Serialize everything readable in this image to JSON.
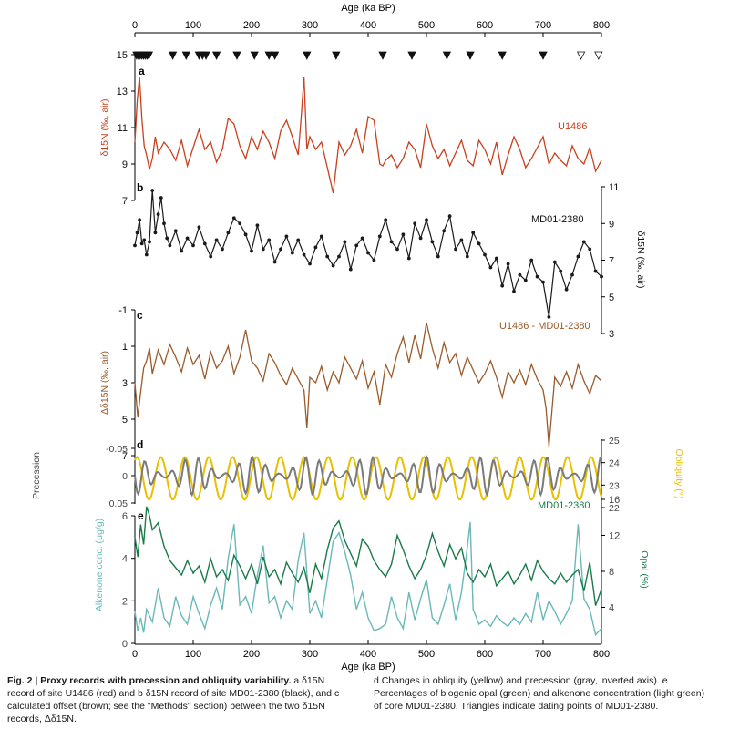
{
  "figure": {
    "top_axis_label": "Age (ka BP)",
    "bottom_axis_label": "Age (ka BP)",
    "age_ticks": [
      "0",
      "100",
      "200",
      "300",
      "400",
      "500",
      "600",
      "700",
      "800"
    ]
  },
  "caption_left": {
    "head": "Fig. 2 | Proxy records with precession and obliquity variability.",
    "body": "a δ15N record of site U1486 (red) and b δ15N record of site MD01-2380 (black), and c calculated offset (brown; see the \"Methods\" section) between the two δ15N records, Δδ15N."
  },
  "caption_right": "d Changes in obliquity (yellow) and precession (gray, inverted axis). e Percentages of biogenic opal (green) and alkenone concentration (light green) of core MD01-2380. Triangles indicate dating points of MD01-2380.",
  "colors": {
    "u1486": "#c8401e",
    "md01": "#1a1a1a",
    "offset": "#9a5a2a",
    "precession": "#7a7a7a",
    "obliquity": "#e8c000",
    "opal": "#1a7a4a",
    "alkenone": "#6ab8b8",
    "triangle_filled": "#111111",
    "triangle_open": "#ffffff"
  },
  "chart_data": [
    {
      "id": "a",
      "type": "line",
      "panel_label": "a",
      "series_name": "U1486",
      "ylabel": "δ15N (‰, air)",
      "ylim": [
        7,
        15
      ],
      "yticks": [
        "7",
        "9",
        "11",
        "13",
        "15"
      ],
      "x": [
        0,
        4,
        8,
        12,
        16,
        20,
        25,
        30,
        35,
        40,
        50,
        60,
        70,
        80,
        90,
        100,
        110,
        120,
        130,
        140,
        150,
        160,
        170,
        180,
        190,
        200,
        210,
        220,
        230,
        240,
        250,
        260,
        270,
        280,
        285,
        290,
        295,
        300,
        310,
        320,
        330,
        340,
        350,
        360,
        370,
        380,
        390,
        400,
        410,
        420,
        425,
        430,
        440,
        450,
        460,
        470,
        480,
        490,
        500,
        510,
        520,
        530,
        540,
        550,
        560,
        570,
        580,
        590,
        600,
        610,
        620,
        630,
        640,
        650,
        660,
        670,
        680,
        690,
        700,
        710,
        720,
        730,
        740,
        750,
        760,
        770,
        780,
        790,
        800
      ],
      "values": [
        10.2,
        12.5,
        13.8,
        11.5,
        10.0,
        9.5,
        8.7,
        9.3,
        10.5,
        9.6,
        10.2,
        9.8,
        9.2,
        10.3,
        8.9,
        9.9,
        10.9,
        9.8,
        10.2,
        9.1,
        9.8,
        11.5,
        11.2,
        10.0,
        9.3,
        10.5,
        9.8,
        10.8,
        10.2,
        9.3,
        10.8,
        11.4,
        10.5,
        9.5,
        11.5,
        13.8,
        9.8,
        10.5,
        9.8,
        10.2,
        8.8,
        7.4,
        10.2,
        9.5,
        10.0,
        10.9,
        9.6,
        11.6,
        11.4,
        9.0,
        8.9,
        9.2,
        9.5,
        8.8,
        9.3,
        10.2,
        9.8,
        8.8,
        11.2,
        10.0,
        9.3,
        9.8,
        8.9,
        9.6,
        10.3,
        9.2,
        8.9,
        10.3,
        9.8,
        9.0,
        10.2,
        8.4,
        9.5,
        10.5,
        9.8,
        8.8,
        9.3,
        9.9,
        10.5,
        9.0,
        9.6,
        9.2,
        8.9,
        10.0,
        9.3,
        9.0,
        9.9,
        8.6,
        9.2
      ]
    },
    {
      "id": "b",
      "type": "line",
      "panel_label": "b",
      "series_name": "MD01-2380",
      "ylabel": "δ15N (‰, air)",
      "ylim": [
        3,
        11
      ],
      "yticks": [
        "3",
        "5",
        "7",
        "9",
        "11"
      ],
      "x": [
        0,
        4,
        8,
        12,
        16,
        20,
        25,
        30,
        35,
        40,
        45,
        50,
        55,
        60,
        70,
        80,
        90,
        100,
        110,
        120,
        130,
        140,
        150,
        160,
        170,
        180,
        190,
        200,
        210,
        220,
        230,
        240,
        250,
        260,
        270,
        280,
        290,
        300,
        310,
        320,
        330,
        340,
        350,
        360,
        370,
        380,
        390,
        400,
        410,
        420,
        430,
        440,
        450,
        460,
        470,
        480,
        490,
        500,
        510,
        520,
        530,
        540,
        550,
        560,
        570,
        580,
        590,
        600,
        610,
        620,
        630,
        640,
        650,
        660,
        670,
        680,
        690,
        700,
        710,
        720,
        730,
        740,
        750,
        760,
        770,
        780,
        790,
        800
      ],
      "values": [
        7.8,
        8.5,
        9.2,
        7.9,
        8.1,
        7.3,
        8.0,
        10.8,
        8.5,
        9.5,
        10.4,
        9.0,
        8.2,
        7.8,
        8.6,
        7.5,
        8.2,
        7.8,
        8.8,
        7.9,
        7.2,
        8.1,
        7.6,
        8.5,
        9.3,
        9.0,
        8.4,
        7.5,
        8.9,
        7.6,
        8.1,
        6.9,
        7.6,
        8.3,
        7.4,
        8.1,
        7.3,
        6.8,
        7.7,
        8.3,
        7.2,
        6.7,
        7.2,
        8.0,
        6.5,
        7.8,
        8.2,
        7.4,
        7.0,
        8.3,
        9.2,
        8.0,
        7.6,
        8.4,
        7.1,
        9.0,
        8.2,
        9.2,
        8.0,
        7.2,
        8.6,
        9.4,
        7.6,
        8.1,
        7.2,
        8.5,
        7.9,
        7.3,
        6.6,
        7.1,
        5.6,
        6.8,
        5.3,
        6.2,
        5.9,
        7.0,
        6.1,
        5.8,
        3.9,
        6.9,
        6.4,
        5.4,
        6.2,
        7.2,
        8.0,
        7.6,
        6.4,
        6.1
      ]
    },
    {
      "id": "c",
      "type": "line",
      "panel_label": "c",
      "series_name": "U1486 - MD01-2380",
      "ylabel": "Δδ15N (‰, air)",
      "ylim": [
        7,
        -1
      ],
      "yticks": [
        "-1",
        "1",
        "3",
        "5",
        "7"
      ],
      "x": [
        0,
        5,
        10,
        15,
        20,
        25,
        30,
        40,
        50,
        60,
        70,
        80,
        90,
        100,
        110,
        120,
        130,
        140,
        150,
        160,
        170,
        180,
        190,
        200,
        210,
        220,
        230,
        240,
        250,
        260,
        270,
        280,
        290,
        295,
        300,
        310,
        320,
        330,
        340,
        350,
        360,
        370,
        380,
        390,
        400,
        410,
        420,
        430,
        440,
        450,
        460,
        470,
        480,
        490,
        500,
        510,
        520,
        530,
        540,
        550,
        560,
        570,
        580,
        590,
        600,
        610,
        620,
        630,
        640,
        650,
        660,
        670,
        680,
        690,
        700,
        705,
        710,
        720,
        730,
        740,
        750,
        760,
        770,
        780,
        790,
        800
      ],
      "values": [
        3.0,
        4.9,
        3.5,
        2.2,
        1.8,
        1.1,
        2.5,
        1.2,
        2.0,
        0.9,
        1.6,
        2.4,
        1.1,
        2.0,
        1.5,
        2.8,
        1.3,
        2.2,
        1.8,
        1.0,
        2.5,
        1.6,
        0.1,
        1.8,
        2.2,
        2.9,
        1.4,
        1.9,
        2.6,
        3.1,
        2.2,
        2.8,
        3.4,
        5.5,
        2.7,
        3.0,
        2.1,
        3.4,
        2.4,
        3.0,
        1.6,
        2.2,
        2.8,
        1.8,
        3.3,
        2.4,
        4.2,
        2.0,
        2.7,
        1.4,
        0.5,
        1.9,
        0.4,
        1.7,
        -0.3,
        1.1,
        2.2,
        0.8,
        1.9,
        1.4,
        2.6,
        1.6,
        2.3,
        3.0,
        2.5,
        1.8,
        2.7,
        3.8,
        2.4,
        3.0,
        2.3,
        3.1,
        2.0,
        2.8,
        3.4,
        4.4,
        6.5,
        2.7,
        3.2,
        2.4,
        3.3,
        2.0,
        2.9,
        3.6,
        2.6,
        2.9
      ]
    },
    {
      "id": "d",
      "type": "line",
      "panel_label": "d",
      "series": [
        {
          "name": "Precession",
          "axis": "left",
          "ylabel": "Precession",
          "ylim": [
            0.05,
            -0.05
          ],
          "yticks": [
            "-0.05",
            "0",
            "0.05"
          ],
          "period_ka": 23,
          "amplitude": 0.035
        },
        {
          "name": "Obliquity",
          "axis": "right",
          "ylabel": "Obliquity (°)",
          "ylim": [
            22,
            25
          ],
          "yticks": [
            "22",
            "23",
            "24",
            "25"
          ],
          "period_ka": 41,
          "mean": 23.3,
          "amplitude": 1.0
        }
      ],
      "label": "MD01-2380"
    },
    {
      "id": "e",
      "type": "line",
      "panel_label": "e",
      "series": [
        {
          "name": "Alkenone conc.",
          "axis": "left",
          "ylabel": "Alkenone conc. (μg/g)",
          "ylim": [
            0,
            6
          ],
          "yticks": [
            "0",
            "2",
            "4",
            "6"
          ],
          "x": [
            0,
            5,
            10,
            15,
            20,
            30,
            40,
            50,
            60,
            70,
            80,
            90,
            100,
            110,
            120,
            130,
            140,
            150,
            160,
            170,
            180,
            190,
            200,
            210,
            220,
            230,
            240,
            250,
            260,
            270,
            280,
            290,
            300,
            310,
            320,
            330,
            340,
            350,
            360,
            370,
            380,
            390,
            400,
            410,
            420,
            430,
            440,
            450,
            460,
            470,
            480,
            490,
            500,
            510,
            520,
            530,
            540,
            550,
            560,
            570,
            575,
            580,
            590,
            600,
            610,
            620,
            630,
            640,
            650,
            660,
            670,
            680,
            690,
            700,
            710,
            720,
            730,
            740,
            750,
            760,
            770,
            780,
            790,
            800
          ],
          "values": [
            1.5,
            0.6,
            1.2,
            0.5,
            1.6,
            1.0,
            2.6,
            1.2,
            0.8,
            2.2,
            1.3,
            0.9,
            2.2,
            1.4,
            0.7,
            1.8,
            2.6,
            1.6,
            4.0,
            5.6,
            1.8,
            2.2,
            1.4,
            3.2,
            4.6,
            1.9,
            2.2,
            1.2,
            2.0,
            1.6,
            3.9,
            5.2,
            1.4,
            2.0,
            1.2,
            3.0,
            4.8,
            5.2,
            4.3,
            3.2,
            1.6,
            2.4,
            1.2,
            0.6,
            0.7,
            0.9,
            2.2,
            1.2,
            0.7,
            2.4,
            1.1,
            2.1,
            3.0,
            1.2,
            0.9,
            1.8,
            2.8,
            1.1,
            2.4,
            4.5,
            5.7,
            1.6,
            0.9,
            1.1,
            0.8,
            1.3,
            1.0,
            0.8,
            1.2,
            0.9,
            1.4,
            1.0,
            2.4,
            1.1,
            2.0,
            1.5,
            0.9,
            1.4,
            2.0,
            5.6,
            2.1,
            1.6,
            0.4,
            0.7
          ]
        },
        {
          "name": "Opal",
          "axis": "right",
          "ylabel": "Opal (%)",
          "ylim": [
            0,
            16
          ],
          "yticks": [
            "4",
            "8",
            "12",
            "16"
          ],
          "x": [
            0,
            5,
            10,
            15,
            20,
            25,
            30,
            40,
            50,
            60,
            70,
            80,
            90,
            100,
            110,
            120,
            130,
            140,
            150,
            160,
            170,
            180,
            190,
            200,
            210,
            220,
            230,
            240,
            250,
            260,
            270,
            280,
            290,
            300,
            310,
            320,
            330,
            340,
            350,
            360,
            370,
            380,
            390,
            400,
            410,
            420,
            430,
            440,
            450,
            460,
            470,
            480,
            490,
            500,
            510,
            520,
            530,
            540,
            550,
            560,
            570,
            580,
            590,
            600,
            610,
            620,
            630,
            640,
            650,
            660,
            670,
            680,
            690,
            700,
            710,
            720,
            730,
            740,
            750,
            760,
            770,
            780,
            790,
            800
          ],
          "values": [
            11.8,
            9.6,
            13.2,
            11.0,
            15.2,
            14.2,
            12.6,
            13.4,
            10.8,
            9.2,
            8.4,
            7.6,
            9.2,
            7.8,
            8.6,
            6.8,
            9.4,
            7.4,
            8.2,
            7.0,
            9.8,
            8.6,
            7.2,
            8.8,
            6.6,
            9.6,
            7.4,
            8.2,
            6.6,
            9.0,
            7.8,
            6.8,
            8.4,
            5.6,
            8.8,
            7.2,
            10.4,
            12.8,
            13.6,
            11.4,
            10.0,
            8.6,
            11.6,
            10.8,
            9.2,
            8.2,
            7.4,
            8.8,
            12.0,
            10.4,
            8.6,
            7.2,
            8.2,
            9.8,
            12.2,
            10.2,
            8.6,
            11.0,
            9.4,
            10.6,
            7.8,
            6.8,
            8.2,
            7.4,
            8.8,
            6.4,
            7.2,
            8.0,
            6.6,
            7.6,
            8.8,
            7.0,
            9.2,
            8.0,
            7.2,
            6.6,
            7.8,
            6.8,
            7.6,
            8.2,
            5.8,
            9.0,
            4.2,
            6.0
          ]
        }
      ],
      "label": "MD01-2380"
    }
  ],
  "dating_points": {
    "filled_ages": [
      3,
      6,
      9,
      12,
      15,
      18,
      21,
      24,
      65,
      88,
      110,
      116,
      122,
      140,
      175,
      205,
      230,
      240,
      295,
      345,
      425,
      475,
      535,
      575,
      630,
      700
    ],
    "open_ages": [
      765,
      795
    ]
  }
}
